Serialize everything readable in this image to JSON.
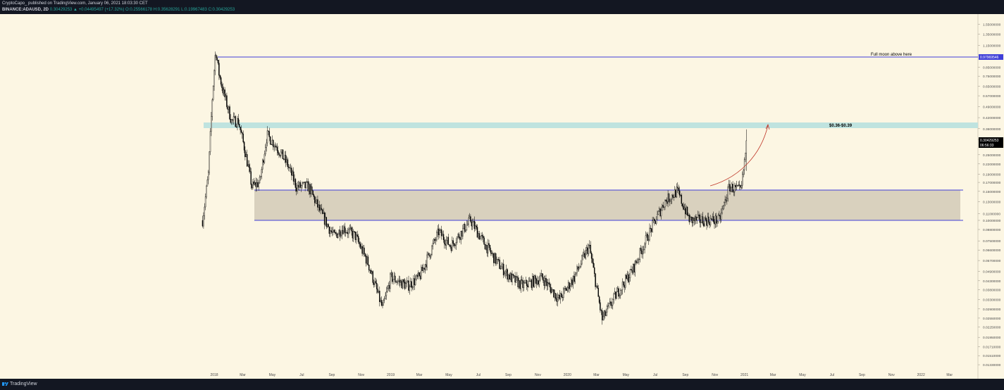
{
  "header": {
    "publisher_line": "CryptoCapo_ published on TradingView.com, January 06, 2021 18:03:30 CET",
    "symbol": "BINANCE:ADAUSD, 2D",
    "ohlc": "0.30429253 ▲ +0.04495497 (+17.32%) O:0.25566178 H:0.35628291 L:0.19967483 C:0.30429253"
  },
  "footer": {
    "brand": "TradingView",
    "logo_icon": "tradingview-logo-icon"
  },
  "colors": {
    "background": "#fcf6e3",
    "candle": "#000000",
    "level_line": "#3f3fd8",
    "zone_fill": "#d9d1be",
    "band_fill": "#bfe3df",
    "arrow": "#c0392b",
    "price_tag": "#000000"
  },
  "chart_data": {
    "type": "candlestick",
    "symbol": "ADAUSD",
    "timeframe": "2D",
    "scale": "log",
    "x_tick_labels": [
      "2018",
      "Mar",
      "May",
      "Jul",
      "Sep",
      "Nov",
      "2019",
      "Mar",
      "May",
      "Jul",
      "Sep",
      "Nov",
      "2020",
      "Mar",
      "May",
      "Jul",
      "Sep",
      "Nov",
      "2021",
      "Mar",
      "May",
      "Jul",
      "Sep",
      "Nov",
      "2022",
      "Mar",
      "May",
      "Jul"
    ],
    "y_tick_labels": [
      "1.55000000",
      "1.35000000",
      "1.15000000",
      "0.97969546",
      "0.85000000",
      "0.75000000",
      "0.65000000",
      "0.57000000",
      "0.49000000",
      "0.42000000",
      "0.36000000",
      "0.31000000",
      "0.30429253",
      "06:56:33",
      "0.25000000",
      "0.22000000",
      "0.19000000",
      "0.17000000",
      "0.15000000",
      "0.13000000",
      "0.11000000",
      "0.10000000",
      "0.08800000",
      "0.07500000",
      "0.06600000",
      "0.05700000",
      "0.04900000",
      "0.04300000",
      "0.03800000",
      "0.03300000",
      "0.02900000",
      "0.02550000",
      "0.02250000",
      "0.01950000",
      "0.01710000",
      "0.01510000",
      "0.01330000",
      "0.01175000"
    ],
    "approx_close_path": [
      {
        "date": "2017-12-08",
        "close": 0.1
      },
      {
        "date": "2017-12-20",
        "close": 0.19
      },
      {
        "date": "2017-12-28",
        "close": 0.55
      },
      {
        "date": "2018-01-04",
        "close": 1.1
      },
      {
        "date": "2018-01-10",
        "close": 0.8
      },
      {
        "date": "2018-01-20",
        "close": 0.6
      },
      {
        "date": "2018-02-06",
        "close": 0.4
      },
      {
        "date": "2018-02-20",
        "close": 0.4
      },
      {
        "date": "2018-03-05",
        "close": 0.27
      },
      {
        "date": "2018-03-20",
        "close": 0.16
      },
      {
        "date": "2018-04-05",
        "close": 0.17
      },
      {
        "date": "2018-04-20",
        "close": 0.33
      },
      {
        "date": "2018-05-10",
        "close": 0.28
      },
      {
        "date": "2018-06-01",
        "close": 0.22
      },
      {
        "date": "2018-06-20",
        "close": 0.16
      },
      {
        "date": "2018-07-15",
        "close": 0.16
      },
      {
        "date": "2018-08-10",
        "close": 0.11
      },
      {
        "date": "2018-09-05",
        "close": 0.08
      },
      {
        "date": "2018-09-25",
        "close": 0.09
      },
      {
        "date": "2018-10-20",
        "close": 0.08
      },
      {
        "date": "2018-11-15",
        "close": 0.055
      },
      {
        "date": "2018-12-05",
        "close": 0.036
      },
      {
        "date": "2018-12-15",
        "close": 0.029
      },
      {
        "date": "2019-01-01",
        "close": 0.045
      },
      {
        "date": "2019-02-05",
        "close": 0.04
      },
      {
        "date": "2019-03-01",
        "close": 0.045
      },
      {
        "date": "2019-04-10",
        "close": 0.085
      },
      {
        "date": "2019-05-05",
        "close": 0.07
      },
      {
        "date": "2019-06-15",
        "close": 0.1
      },
      {
        "date": "2019-07-10",
        "close": 0.075
      },
      {
        "date": "2019-08-10",
        "close": 0.055
      },
      {
        "date": "2019-09-05",
        "close": 0.045
      },
      {
        "date": "2019-10-01",
        "close": 0.04
      },
      {
        "date": "2019-11-10",
        "close": 0.045
      },
      {
        "date": "2019-12-15",
        "close": 0.033
      },
      {
        "date": "2020-01-15",
        "close": 0.045
      },
      {
        "date": "2020-02-15",
        "close": 0.07
      },
      {
        "date": "2020-03-13",
        "close": 0.025
      },
      {
        "date": "2020-04-10",
        "close": 0.035
      },
      {
        "date": "2020-05-15",
        "close": 0.05
      },
      {
        "date": "2020-06-15",
        "close": 0.08
      },
      {
        "date": "2020-07-20",
        "close": 0.13
      },
      {
        "date": "2020-08-15",
        "close": 0.15
      },
      {
        "date": "2020-09-10",
        "close": 0.1
      },
      {
        "date": "2020-10-10",
        "close": 0.1
      },
      {
        "date": "2020-11-10",
        "close": 0.1
      },
      {
        "date": "2020-12-01",
        "close": 0.16
      },
      {
        "date": "2020-12-25",
        "close": 0.15
      },
      {
        "date": "2021-01-06",
        "close": 0.30429253
      }
    ],
    "last_price": 0.30429253,
    "countdown": "06:56:33",
    "levels": [
      {
        "price": 0.97969546,
        "label": "0.97969546",
        "annotation": "Full moon above here"
      },
      {
        "price": 0.15,
        "label": ""
      },
      {
        "price": 0.1,
        "label": ""
      }
    ],
    "zones": [
      {
        "low": 0.1,
        "high": 0.15,
        "from": "2018-03-20",
        "to": "2022-05-01"
      },
      {
        "low": 0.36,
        "high": 0.39,
        "label": "$0.36-$0.39"
      }
    ],
    "projection_arrow": {
      "from_date": "2021-01-06",
      "from_price": 0.16,
      "to_date": "2021-05-15",
      "to_price": 0.38
    }
  }
}
